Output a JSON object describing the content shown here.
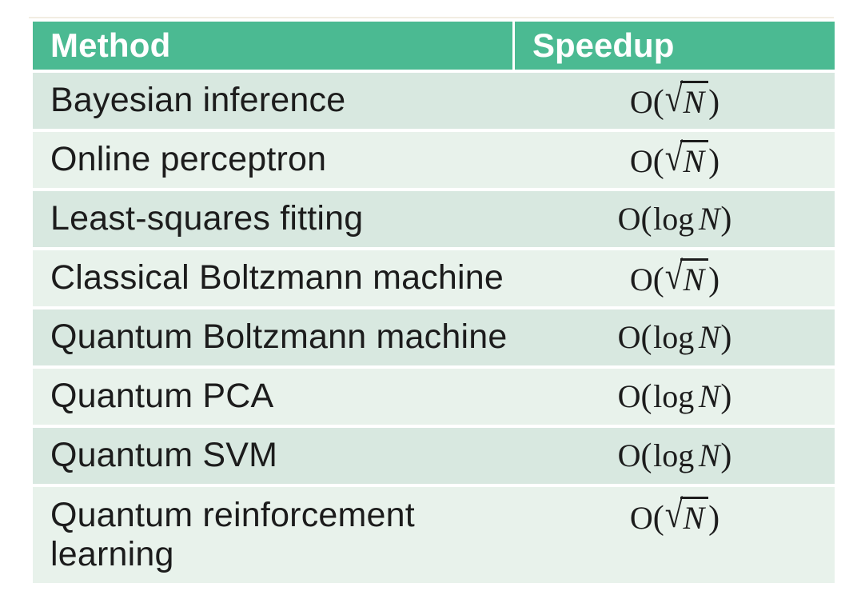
{
  "colors": {
    "header_bg": "#4bba92",
    "header_text": "#ffffff",
    "row_dark": "#d8e8e0",
    "row_light": "#e8f2eb",
    "text": "#1c1c1c",
    "artifact_line": "#f1ebdf"
  },
  "chart_data": {
    "type": "table",
    "columns": [
      "Method",
      "Speedup"
    ],
    "rows": [
      {
        "method": "Bayesian inference",
        "speedup": "O(√N)",
        "speedup_form": "sqrt"
      },
      {
        "method": "Online perceptron",
        "speedup": "O(√N)",
        "speedup_form": "sqrt"
      },
      {
        "method": "Least-squares fitting",
        "speedup": "O(log N)",
        "speedup_form": "log"
      },
      {
        "method": "Classical Boltzmann machine",
        "speedup": "O(√N)",
        "speedup_form": "sqrt"
      },
      {
        "method": "Quantum Boltzmann machine",
        "speedup": "O(log N)",
        "speedup_form": "log"
      },
      {
        "method": "Quantum PCA",
        "speedup": "O(log N)",
        "speedup_form": "log"
      },
      {
        "method": "Quantum SVM",
        "speedup": "O(log N)",
        "speedup_form": "log"
      },
      {
        "method": "Quantum reinforcement learning",
        "speedup": "O(√N)",
        "speedup_form": "sqrt"
      }
    ]
  },
  "formula_templates": {
    "sqrt": {
      "big_o": "O",
      "open_paren": "(",
      "radical": "√",
      "radicand": "N",
      "close_paren": ")"
    },
    "log": {
      "big_o": "O",
      "open_paren": "(",
      "function": "log",
      "variable": "N",
      "close_paren": ")"
    }
  }
}
